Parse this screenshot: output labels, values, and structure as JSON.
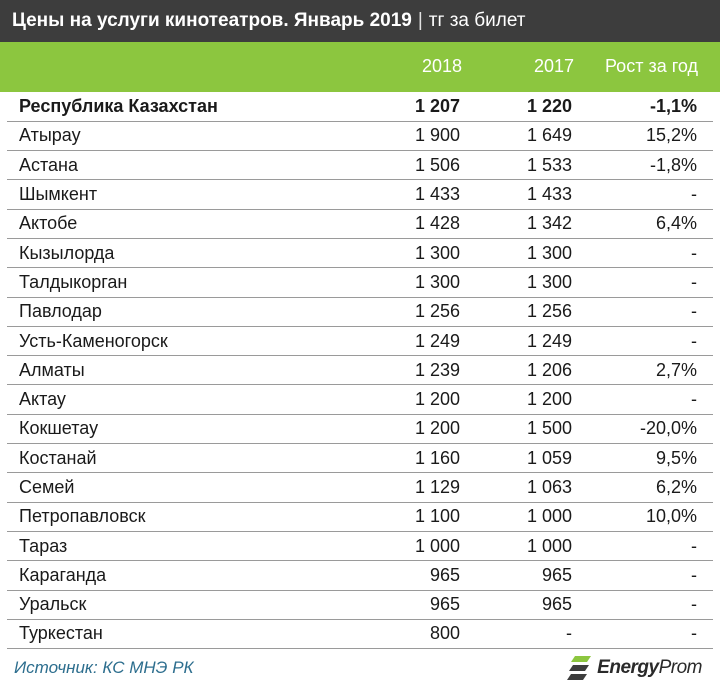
{
  "header": {
    "title": "Цены на услуги кинотеатров. Январь 2019",
    "separator": "|",
    "unit": "тг за билет"
  },
  "columns": {
    "c2018": "2018",
    "c2017": "2017",
    "growth": "Рост за год"
  },
  "rows": [
    {
      "name": "Республика Казахстан",
      "v2018": "1 207",
      "v2017": "1 220",
      "growth": "-1,1%"
    },
    {
      "name": "Атырау",
      "v2018": "1 900",
      "v2017": "1 649",
      "growth": "15,2%"
    },
    {
      "name": "Астана",
      "v2018": "1 506",
      "v2017": "1 533",
      "growth": "-1,8%"
    },
    {
      "name": "Шымкент",
      "v2018": "1 433",
      "v2017": "1 433",
      "growth": "-"
    },
    {
      "name": "Актобе",
      "v2018": "1 428",
      "v2017": "1 342",
      "growth": "6,4%"
    },
    {
      "name": "Кызылорда",
      "v2018": "1 300",
      "v2017": "1 300",
      "growth": "-"
    },
    {
      "name": "Талдыкорган",
      "v2018": "1 300",
      "v2017": "1 300",
      "growth": "-"
    },
    {
      "name": "Павлодар",
      "v2018": "1 256",
      "v2017": "1 256",
      "growth": "-"
    },
    {
      "name": "Усть-Каменогорск",
      "v2018": "1 249",
      "v2017": "1 249",
      "growth": "-"
    },
    {
      "name": "Алматы",
      "v2018": "1 239",
      "v2017": "1 206",
      "growth": "2,7%"
    },
    {
      "name": "Актау",
      "v2018": "1 200",
      "v2017": "1 200",
      "growth": "-"
    },
    {
      "name": "Кокшетау",
      "v2018": "1 200",
      "v2017": "1 500",
      "growth": "-20,0%"
    },
    {
      "name": "Костанай",
      "v2018": "1 160",
      "v2017": "1 059",
      "growth": "9,5%"
    },
    {
      "name": "Семей",
      "v2018": "1 129",
      "v2017": "1 063",
      "growth": "6,2%"
    },
    {
      "name": "Петропавловск",
      "v2018": "1 100",
      "v2017": "1 000",
      "growth": "10,0%"
    },
    {
      "name": "Тараз",
      "v2018": "1 000",
      "v2017": "1 000",
      "growth": "-"
    },
    {
      "name": "Караганда",
      "v2018": "965",
      "v2017": "965",
      "growth": "-"
    },
    {
      "name": "Уральск",
      "v2018": "965",
      "v2017": "965",
      "growth": "-"
    },
    {
      "name": "Туркестан",
      "v2018": "800",
      "v2017": "-",
      "growth": "-"
    }
  ],
  "footer": {
    "source": "Источник: КС МНЭ РК",
    "logo_main": "Energy",
    "logo_suffix": "Prom",
    "logo_icon": "energyprom-logo-icon"
  },
  "colors": {
    "title_bg": "#3d3d3d",
    "header_bg": "#8cc63f",
    "source_text": "#2d6e8e"
  }
}
